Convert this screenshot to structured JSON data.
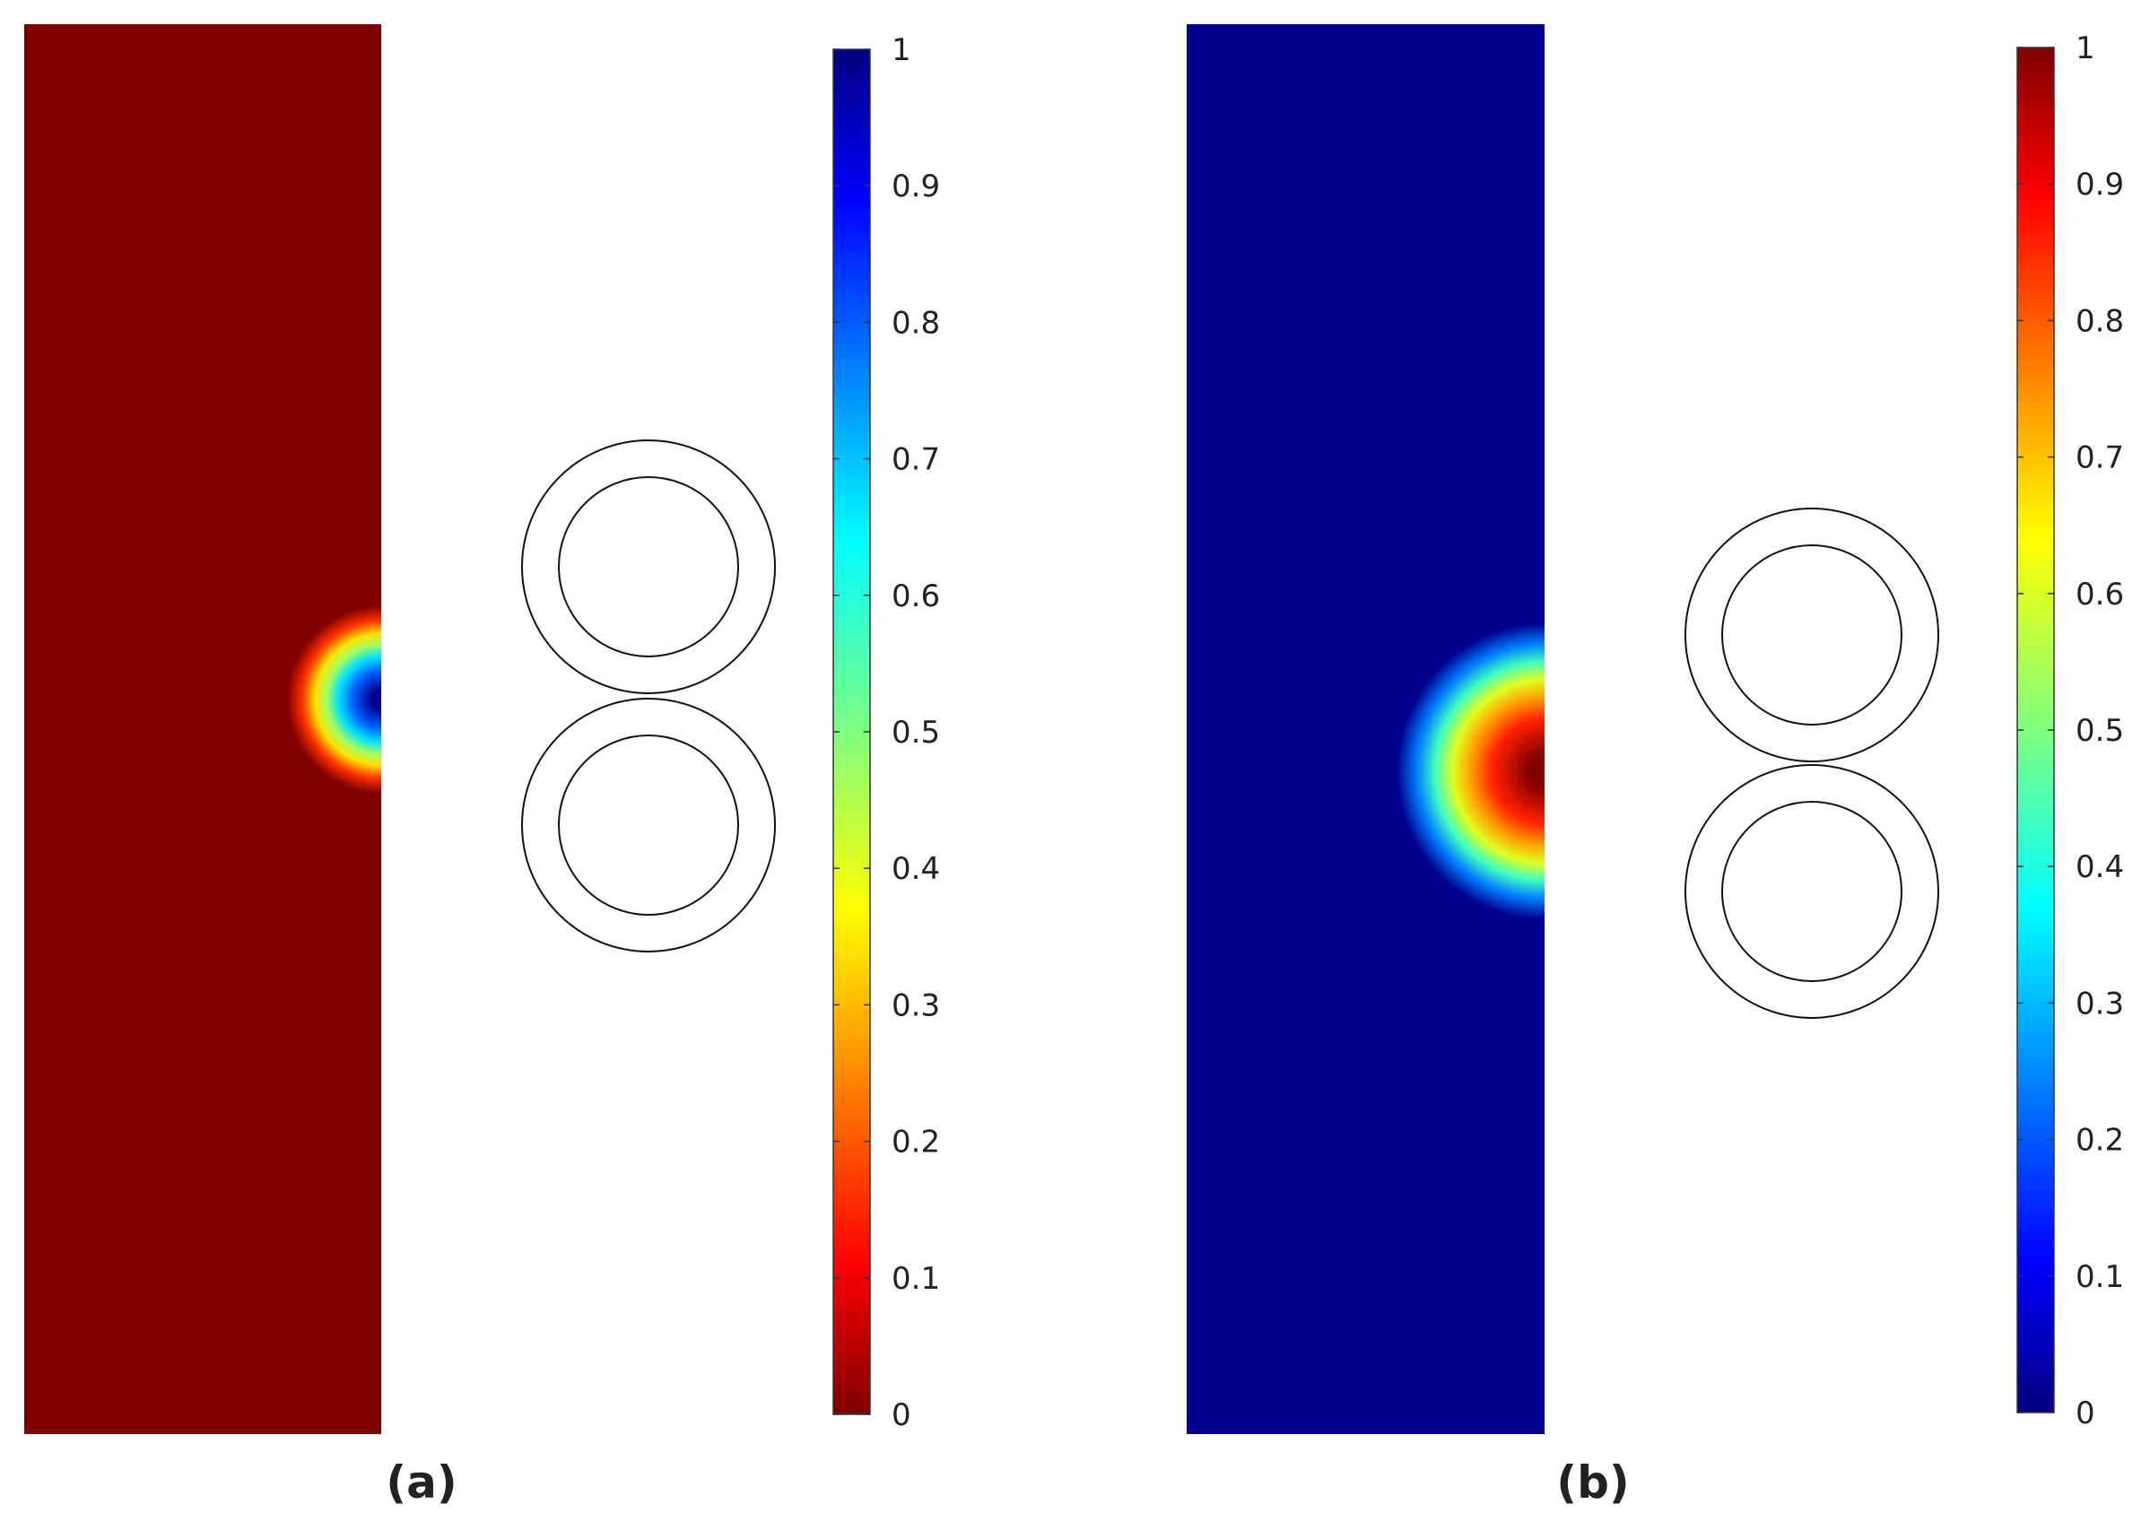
{
  "panels": [
    {
      "label": "(a)",
      "background_color": "#800000",
      "hotspot_colors": [
        "#000090",
        "#0060ff",
        "#00e0ff",
        "#a0ff60",
        "#ffe000",
        "#ff3000",
        "#800000"
      ],
      "colorbar": {
        "colormap": "jet-reversed",
        "range": [
          0,
          1
        ],
        "ticks": [
          "0",
          "0.1",
          "0.2",
          "0.3",
          "0.4",
          "0.5",
          "0.6",
          "0.7",
          "0.8",
          "0.9",
          "1"
        ]
      }
    },
    {
      "label": "(b)",
      "background_color": "#00008f",
      "hotspot_colors": [
        "#800000",
        "#ff2000",
        "#ffa000",
        "#e0ff20",
        "#40ffc0",
        "#0080ff",
        "#00008f"
      ],
      "colorbar": {
        "colormap": "jet",
        "range": [
          0,
          1
        ],
        "ticks": [
          "0",
          "0.1",
          "0.2",
          "0.3",
          "0.4",
          "0.5",
          "0.6",
          "0.7",
          "0.8",
          "0.9",
          "1"
        ]
      }
    }
  ]
}
